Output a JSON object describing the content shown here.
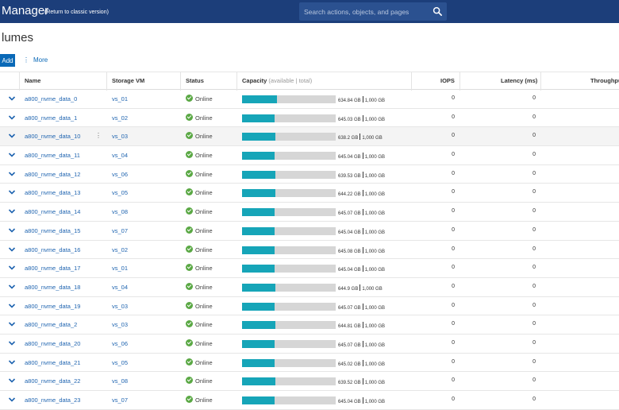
{
  "app": {
    "title": "Manager",
    "classic_link": "(Return to classic version)",
    "search_placeholder": "Search actions, objects, and pages"
  },
  "page": {
    "title": "lumes",
    "add_label": "Add",
    "more_label": "More"
  },
  "columns": {
    "name": "Name",
    "svm": "Storage VM",
    "status": "Status",
    "capacity": "Capacity",
    "capacity_sub": "(available | total)",
    "iops": "IOPS",
    "latency": "Latency (ms)",
    "throughput": "Throughput"
  },
  "colors": {
    "topbar": "#1c3e7a",
    "accent": "#0a69b7",
    "capacity_fill": "#16a5b8",
    "online": "#5aa844"
  },
  "rows": [
    {
      "name": "a800_nvme_data_0",
      "svm": "vs_01",
      "status": "Online",
      "available": "634.84 GB",
      "total": "1,000 GB",
      "used_fraction": 0.37,
      "iops": "0",
      "latency": "0"
    },
    {
      "name": "a800_nvme_data_1",
      "svm": "vs_02",
      "status": "Online",
      "available": "645.03 GB",
      "total": "1,000 GB",
      "used_fraction": 0.35,
      "iops": "0",
      "latency": "0"
    },
    {
      "name": "a800_nvme_data_10",
      "svm": "vs_03",
      "status": "Online",
      "available": "638.2 GB",
      "total": "1,000 GB",
      "used_fraction": 0.36,
      "iops": "0",
      "latency": "0"
    },
    {
      "name": "a800_nvme_data_11",
      "svm": "vs_04",
      "status": "Online",
      "available": "645.04 GB",
      "total": "1,000 GB",
      "used_fraction": 0.35,
      "iops": "0",
      "latency": "0"
    },
    {
      "name": "a800_nvme_data_12",
      "svm": "vs_06",
      "status": "Online",
      "available": "639.53 GB",
      "total": "1,000 GB",
      "used_fraction": 0.36,
      "iops": "0",
      "latency": "0"
    },
    {
      "name": "a800_nvme_data_13",
      "svm": "vs_05",
      "status": "Online",
      "available": "644.22 GB",
      "total": "1,000 GB",
      "used_fraction": 0.36,
      "iops": "0",
      "latency": "0"
    },
    {
      "name": "a800_nvme_data_14",
      "svm": "vs_08",
      "status": "Online",
      "available": "645.07 GB",
      "total": "1,000 GB",
      "used_fraction": 0.35,
      "iops": "0",
      "latency": "0"
    },
    {
      "name": "a800_nvme_data_15",
      "svm": "vs_07",
      "status": "Online",
      "available": "645.04 GB",
      "total": "1,000 GB",
      "used_fraction": 0.35,
      "iops": "0",
      "latency": "0"
    },
    {
      "name": "a800_nvme_data_16",
      "svm": "vs_02",
      "status": "Online",
      "available": "645.08 GB",
      "total": "1,000 GB",
      "used_fraction": 0.35,
      "iops": "0",
      "latency": "0"
    },
    {
      "name": "a800_nvme_data_17",
      "svm": "vs_01",
      "status": "Online",
      "available": "645.04 GB",
      "total": "1,000 GB",
      "used_fraction": 0.35,
      "iops": "0",
      "latency": "0"
    },
    {
      "name": "a800_nvme_data_18",
      "svm": "vs_04",
      "status": "Online",
      "available": "644.9 GB",
      "total": "1,000 GB",
      "used_fraction": 0.36,
      "iops": "0",
      "latency": "0"
    },
    {
      "name": "a800_nvme_data_19",
      "svm": "vs_03",
      "status": "Online",
      "available": "645.07 GB",
      "total": "1,000 GB",
      "used_fraction": 0.35,
      "iops": "0",
      "latency": "0"
    },
    {
      "name": "a800_nvme_data_2",
      "svm": "vs_03",
      "status": "Online",
      "available": "644.81 GB",
      "total": "1,000 GB",
      "used_fraction": 0.36,
      "iops": "0",
      "latency": "0"
    },
    {
      "name": "a800_nvme_data_20",
      "svm": "vs_06",
      "status": "Online",
      "available": "645.07 GB",
      "total": "1,000 GB",
      "used_fraction": 0.35,
      "iops": "0",
      "latency": "0"
    },
    {
      "name": "a800_nvme_data_21",
      "svm": "vs_05",
      "status": "Online",
      "available": "645.02 GB",
      "total": "1,000 GB",
      "used_fraction": 0.35,
      "iops": "0",
      "latency": "0"
    },
    {
      "name": "a800_nvme_data_22",
      "svm": "vs_08",
      "status": "Online",
      "available": "639.52 GB",
      "total": "1,000 GB",
      "used_fraction": 0.36,
      "iops": "0",
      "latency": "0"
    },
    {
      "name": "a800_nvme_data_23",
      "svm": "vs_07",
      "status": "Online",
      "available": "645.04 GB",
      "total": "1,000 GB",
      "used_fraction": 0.35,
      "iops": "0",
      "latency": "0"
    }
  ]
}
